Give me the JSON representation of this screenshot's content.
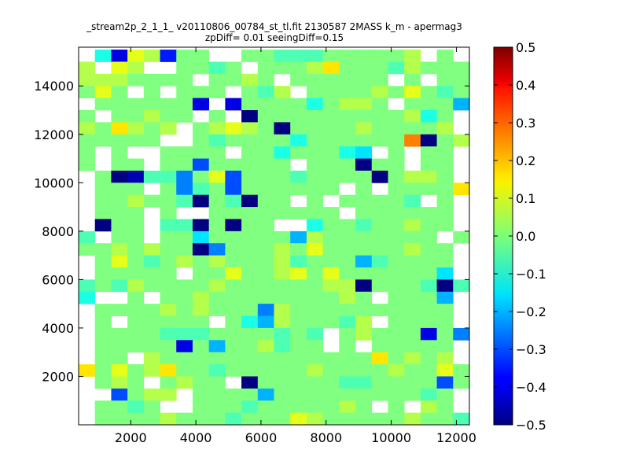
{
  "chart_data": {
    "type": "heatmap",
    "title": "_stream2p_2_1_1_ v20110806_00784_st_tl.fit 2130587 2MASS k_m - apermag3",
    "subtitle": "zpDiff= 0.01 seeingDiff=0.15",
    "xlabel": "",
    "ylabel": "",
    "xlim": [
      400,
      12400
    ],
    "ylim": [
      0,
      15600
    ],
    "x_ticks": [
      2000,
      4000,
      6000,
      8000,
      10000,
      12000
    ],
    "y_ticks": [
      2000,
      4000,
      6000,
      8000,
      10000,
      12000,
      14000
    ],
    "colorbar": {
      "colormap": "jet",
      "vmin": -0.5,
      "vmax": 0.5,
      "ticks": [
        "0.5",
        "0.4",
        "0.3",
        "0.2",
        "0.1",
        "0.0",
        "−0.1",
        "−0.2",
        "−0.3",
        "−0.4",
        "−0.5"
      ],
      "tick_values": [
        0.5,
        0.4,
        0.3,
        0.2,
        0.1,
        0.0,
        -0.1,
        -0.2,
        -0.3,
        -0.4,
        -0.5
      ]
    },
    "grid": false,
    "x_bins": {
      "start": 400,
      "step": 500,
      "count": 24
    },
    "y_bins": {
      "start": 0,
      "step": 500,
      "count": 31
    },
    "value_format": "rows listed top (y 15100-15600) to bottom (y 0-500); each row has 24 cells left to right; null = no data",
    "values": [
      [
        null,
        -0.1,
        -0.4,
        0.1,
        0.05,
        -0.35,
        0,
        0,
        null,
        null,
        0,
        0,
        -0.05,
        -0.05,
        -0.05,
        0,
        0,
        0,
        0,
        0,
        0.05,
        null,
        0,
        null
      ],
      [
        0.05,
        null,
        0.1,
        0.05,
        null,
        null,
        0,
        0,
        -0.05,
        0,
        null,
        0,
        0,
        0,
        0.05,
        0.15,
        0,
        0,
        0,
        -0.05,
        0.05,
        0,
        0,
        0
      ],
      [
        0.05,
        0.05,
        0.05,
        0,
        0,
        0,
        0,
        null,
        0,
        0,
        0.05,
        0,
        null,
        0,
        0,
        0,
        0,
        0,
        0,
        null,
        0,
        null,
        0,
        0
      ],
      [
        0,
        0.1,
        0,
        null,
        0,
        null,
        0,
        0,
        0,
        null,
        0,
        -0.05,
        0.05,
        null,
        0,
        0,
        0,
        0,
        0.05,
        0,
        0.1,
        0,
        -0.05,
        0
      ],
      [
        null,
        0,
        0,
        0,
        0,
        0,
        0,
        -0.4,
        null,
        -0.4,
        0,
        0,
        0,
        0,
        -0.1,
        0,
        0.05,
        0.05,
        0,
        null,
        0,
        0,
        0,
        -0.2
      ],
      [
        0,
        null,
        0,
        0,
        0.05,
        0,
        0,
        null,
        0,
        null,
        -0.5,
        0,
        0,
        0,
        0,
        0,
        0,
        0,
        0,
        0,
        0.05,
        -0.1,
        0,
        null
      ],
      [
        0.05,
        0,
        0.15,
        0.05,
        0,
        0.05,
        null,
        0,
        0.05,
        0.1,
        0.05,
        0,
        -0.5,
        0,
        0,
        0,
        0,
        0.05,
        0,
        0,
        0,
        0,
        0.05,
        null
      ],
      [
        0,
        0,
        0,
        0,
        0,
        null,
        null,
        0,
        -0.05,
        0,
        0,
        0,
        0,
        -0.1,
        0,
        0,
        0,
        0,
        0,
        0,
        0.25,
        -0.5,
        0,
        0.05
      ],
      [
        0,
        null,
        0,
        null,
        null,
        0,
        0,
        0,
        0,
        null,
        0,
        0,
        -0.1,
        0,
        0,
        0,
        -0.1,
        -0.15,
        null,
        0,
        null,
        0,
        0,
        null
      ],
      [
        0,
        null,
        0,
        0,
        null,
        0,
        0,
        -0.3,
        0,
        0,
        0,
        0,
        0,
        null,
        0,
        0,
        0,
        -0.5,
        0,
        0,
        null,
        0,
        0,
        null
      ],
      [
        null,
        0,
        -0.5,
        -0.45,
        -0.05,
        -0.05,
        -0.25,
        0,
        0.1,
        -0.3,
        0,
        0,
        0,
        -0.05,
        0,
        0,
        0,
        0,
        -0.5,
        0,
        0.05,
        0.05,
        0,
        null
      ],
      [
        null,
        0,
        0,
        0,
        null,
        0,
        -0.25,
        -0.05,
        0,
        -0.3,
        0,
        0,
        0,
        0,
        0,
        0,
        null,
        0,
        null,
        0,
        0,
        0,
        0,
        0.15
      ],
      [
        null,
        0,
        0,
        0.05,
        0,
        0,
        -0.05,
        -0.5,
        0,
        -0.05,
        -0.5,
        0,
        0,
        null,
        0,
        null,
        0,
        0,
        0,
        0,
        -0.05,
        null,
        0,
        null
      ],
      [
        null,
        0,
        0,
        0,
        null,
        0,
        null,
        null,
        0,
        0,
        0,
        0,
        0,
        0,
        0,
        0,
        null,
        0,
        0,
        0,
        0,
        0,
        0,
        null
      ],
      [
        null,
        -0.5,
        0,
        0,
        null,
        -0.05,
        -0.05,
        -0.5,
        0,
        -0.5,
        0,
        0,
        null,
        null,
        -0.1,
        0,
        0,
        -0.05,
        0,
        0,
        0.05,
        0,
        0,
        null
      ],
      [
        -0.05,
        null,
        0,
        0,
        null,
        0,
        0,
        -0.15,
        0,
        0,
        0,
        0,
        0,
        -0.2,
        0.05,
        0,
        0,
        0,
        0,
        0,
        0,
        0,
        null,
        0
      ],
      [
        0,
        0,
        0.05,
        0,
        0.05,
        0,
        0,
        -0.5,
        -0.25,
        0,
        0,
        0,
        0.05,
        0,
        0.1,
        0,
        0,
        0,
        0,
        0,
        0.05,
        0,
        0,
        null
      ],
      [
        null,
        0,
        0.1,
        0,
        -0.05,
        0,
        0.05,
        0,
        0.05,
        0,
        0,
        0,
        0.05,
        -0.05,
        0,
        0,
        0,
        -0.2,
        -0.05,
        0,
        0,
        0,
        0,
        null
      ],
      [
        null,
        0,
        0,
        0,
        0,
        0,
        null,
        0,
        0,
        0.1,
        0,
        0,
        0.05,
        0.1,
        0,
        0.1,
        0,
        0,
        0,
        0,
        0,
        0,
        -0.15,
        null
      ],
      [
        -0.05,
        0,
        -0.05,
        0.05,
        0,
        0,
        0,
        0,
        0.05,
        0,
        0,
        0,
        0,
        0,
        0,
        0.05,
        0.05,
        -0.5,
        0,
        0,
        0,
        -0.05,
        -0.5,
        -0.05
      ],
      [
        -0.1,
        null,
        null,
        0,
        null,
        0,
        0,
        0.05,
        0,
        0,
        0,
        0,
        0,
        0,
        0,
        0,
        0.05,
        0,
        null,
        0,
        0,
        0,
        -0.2,
        null
      ],
      [
        null,
        0,
        0,
        0,
        0,
        0.05,
        0,
        0.05,
        0,
        0,
        0,
        -0.25,
        0.05,
        0,
        0,
        0,
        0,
        0,
        0,
        0,
        0,
        0,
        0,
        null
      ],
      [
        null,
        0,
        null,
        0,
        0,
        0,
        0,
        0,
        null,
        0,
        -0.1,
        -0.2,
        0.05,
        0,
        0,
        0,
        -0.05,
        0.05,
        null,
        0,
        0,
        0,
        0,
        null
      ],
      [
        null,
        0,
        0,
        0,
        0,
        -0.05,
        -0.05,
        -0.05,
        0,
        0,
        0,
        0,
        -0.05,
        0,
        -0.05,
        null,
        0,
        0.05,
        0,
        0,
        0,
        -0.4,
        0,
        -0.25
      ],
      [
        null,
        0,
        0,
        0,
        0,
        0,
        -0.4,
        0,
        -0.2,
        0,
        0,
        0.05,
        -0.05,
        0,
        0,
        null,
        0,
        null,
        0,
        0,
        0,
        0,
        0,
        null
      ],
      [
        null,
        0,
        0,
        null,
        0.05,
        0,
        0,
        0,
        0,
        0,
        0,
        0,
        0,
        0,
        0,
        0,
        0,
        0,
        0.15,
        0,
        0.05,
        0,
        0.05,
        null
      ],
      [
        0.15,
        0,
        0.1,
        0,
        0.05,
        0.15,
        0,
        0,
        -0.05,
        0,
        0,
        0,
        0,
        0,
        0.05,
        0,
        0,
        0,
        0,
        0.05,
        0,
        0,
        0.1,
        0
      ],
      [
        null,
        0,
        0.05,
        0,
        null,
        0,
        0.05,
        0,
        0,
        null,
        -0.5,
        0,
        0,
        0,
        0,
        0,
        -0.05,
        -0.05,
        0,
        0,
        0,
        0,
        -0.3,
        0
      ],
      [
        null,
        null,
        -0.3,
        0,
        0.05,
        0.05,
        null,
        0,
        0,
        0,
        0,
        -0.2,
        0,
        0,
        0,
        0,
        0,
        0,
        0,
        0,
        0,
        -0.05,
        0,
        null
      ],
      [
        null,
        0,
        0,
        -0.05,
        0,
        null,
        null,
        0,
        0,
        0,
        -0.05,
        0,
        0,
        0,
        0,
        0,
        0.05,
        0,
        null,
        0,
        null,
        0.05,
        0,
        null
      ],
      [
        null,
        0,
        0,
        0,
        0,
        0.05,
        0,
        0,
        0,
        -0.05,
        0,
        0,
        0,
        0.1,
        0.05,
        0,
        0,
        0,
        0,
        0,
        0.05,
        0,
        0,
        -0.05
      ]
    ]
  }
}
